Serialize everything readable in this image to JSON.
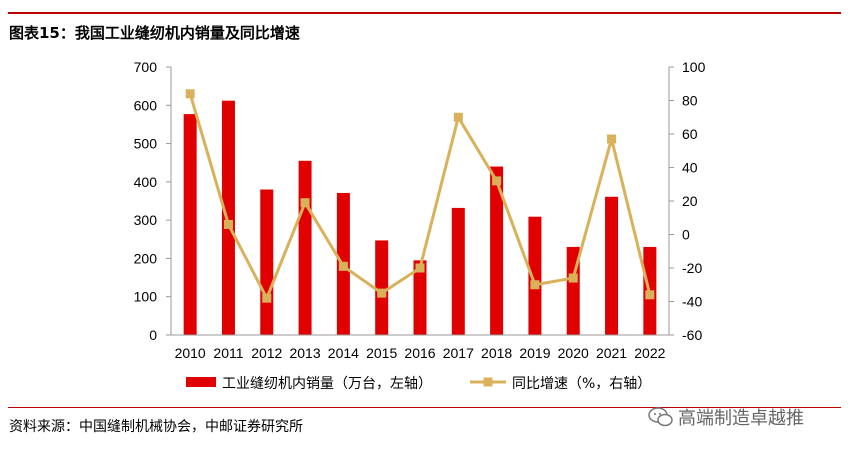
{
  "header": {
    "title": "图表15：我国工业缝纫机内销量及同比增速"
  },
  "footer": {
    "source": "资料来源：中国缝制机械协会，中邮证券研究所",
    "watermark": "高端制造卓越推"
  },
  "colors": {
    "bar": "#e10000",
    "line": "#d9b15a",
    "rule": "#c00000"
  },
  "chart_data": {
    "type": "bar",
    "categories": [
      "2010",
      "2011",
      "2012",
      "2013",
      "2014",
      "2015",
      "2016",
      "2017",
      "2018",
      "2019",
      "2020",
      "2021",
      "2022"
    ],
    "series": [
      {
        "name": "工业缝纫机内销量（万台，左轴）",
        "type": "bar",
        "axis": "left",
        "values": [
          577,
          612,
          380,
          455,
          371,
          247,
          195,
          332,
          440,
          309,
          230,
          361,
          230
        ]
      },
      {
        "name": "同比增速（%，右轴）",
        "type": "line",
        "axis": "right",
        "values": [
          84,
          6,
          -38,
          19,
          -19,
          -35,
          -20,
          70,
          32,
          -30,
          -26,
          57,
          -36
        ]
      }
    ],
    "ylim": [
      0,
      700
    ],
    "yticks": [
      0,
      100,
      200,
      300,
      400,
      500,
      600,
      700
    ],
    "y2lim": [
      -60,
      100
    ],
    "y2ticks": [
      -60,
      -40,
      -20,
      0,
      20,
      40,
      60,
      80,
      100
    ],
    "grid": false,
    "legend_position": "bottom"
  }
}
